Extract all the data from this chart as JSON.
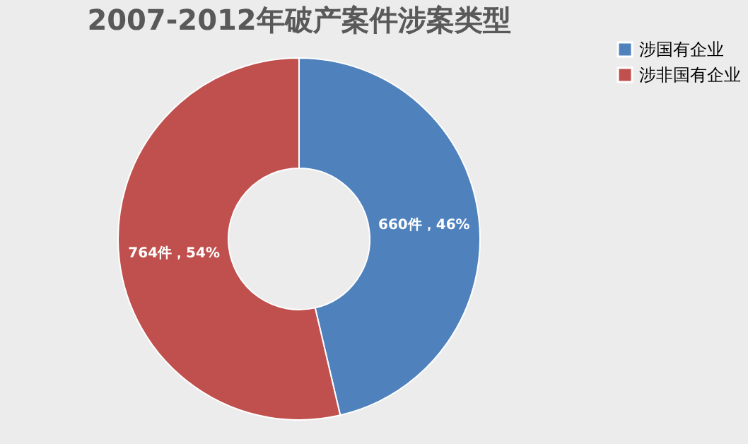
{
  "chart_data": {
    "type": "donut",
    "title": "2007-2012年破产案件涉案类型",
    "categories": [
      "涉国有企业",
      "涉非国有企业"
    ],
    "values": [
      660,
      764
    ],
    "colors": [
      "#4f81bd",
      "#c0504d"
    ],
    "value_labels": [
      "660件，46%",
      "764件，54%"
    ],
    "legend": "right"
  }
}
